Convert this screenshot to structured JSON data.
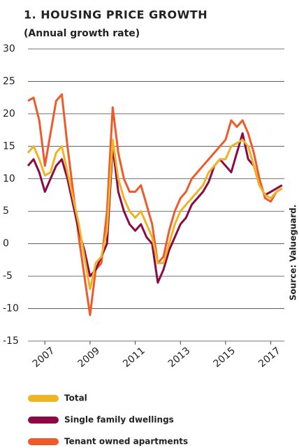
{
  "chart_data": {
    "type": "line",
    "title": "1. HOUSING PRICE GROWTH",
    "subtitle": "(Annual growth rate)",
    "source": "Source: Valueguard.",
    "x": [
      2006.25,
      2006.5,
      2006.75,
      2007,
      2007.25,
      2007.5,
      2007.75,
      2008,
      2008.25,
      2008.5,
      2008.75,
      2009,
      2009.25,
      2009.5,
      2009.75,
      2010,
      2010.25,
      2010.5,
      2010.75,
      2011,
      2011.25,
      2011.5,
      2011.75,
      2012,
      2012.25,
      2012.5,
      2012.75,
      2013,
      2013.25,
      2013.5,
      2013.75,
      2014,
      2014.25,
      2014.5,
      2014.75,
      2015,
      2015.25,
      2015.5,
      2015.75,
      2016,
      2016.25,
      2016.5,
      2016.75,
      2017,
      2017.25,
      2017.5
    ],
    "xlim": [
      2006.25,
      2017.6
    ],
    "xticks": [
      2007,
      2009,
      2011,
      2013,
      2015,
      2017
    ],
    "ylim": [
      -15,
      30
    ],
    "yticks": [
      -15,
      -10,
      -5,
      0,
      5,
      10,
      15,
      20,
      25,
      30
    ],
    "grid": true,
    "series": [
      {
        "name": "Total",
        "color": "#f0b323",
        "values": [
          14,
          15,
          13,
          10.5,
          11,
          14,
          15,
          11,
          7,
          3,
          -2,
          -7,
          -3,
          -2,
          2,
          16,
          10,
          7,
          5,
          4,
          5,
          3,
          1,
          -3,
          -3,
          0,
          3,
          5,
          6,
          7,
          8,
          9,
          11,
          12,
          13,
          13,
          15,
          15.5,
          16,
          15,
          12,
          9,
          7.5,
          7,
          8,
          8.5
        ]
      },
      {
        "name": "Single family dwellings",
        "color": "#8b0a45",
        "values": [
          12,
          13,
          11,
          8,
          10,
          12,
          13,
          10,
          6,
          2,
          -1,
          -5,
          -4,
          -2,
          0,
          15,
          8,
          5,
          3,
          2,
          3,
          1,
          0,
          -6,
          -4,
          -1,
          1,
          3,
          4,
          6,
          7,
          8,
          9.5,
          12,
          13,
          12,
          11,
          14,
          17,
          13,
          12,
          9,
          7.5,
          8,
          8.5,
          9
        ]
      },
      {
        "name": "Tenant owned apartments",
        "color": "#ef5a2a",
        "values": [
          22,
          22.5,
          19,
          12,
          17,
          22,
          23,
          15,
          8,
          1,
          -5,
          -11,
          -4,
          -3,
          5,
          21,
          14,
          10,
          8,
          8,
          9,
          6,
          3,
          -3,
          -2,
          2,
          5,
          7,
          8,
          10,
          11,
          12,
          13,
          14,
          15,
          16,
          19,
          18,
          19,
          17,
          14,
          10,
          7,
          6.5,
          8,
          8.5
        ]
      }
    ]
  }
}
